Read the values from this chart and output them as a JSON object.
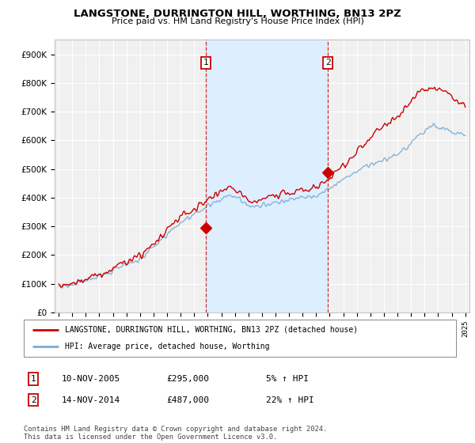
{
  "title": "LANGSTONE, DURRINGTON HILL, WORTHING, BN13 2PZ",
  "subtitle": "Price paid vs. HM Land Registry's House Price Index (HPI)",
  "ylim": [
    0,
    950000
  ],
  "yticks": [
    0,
    100000,
    200000,
    300000,
    400000,
    500000,
    600000,
    700000,
    800000,
    900000
  ],
  "ytick_labels": [
    "£0",
    "£100K",
    "£200K",
    "£300K",
    "£400K",
    "£500K",
    "£600K",
    "£700K",
    "£800K",
    "£900K"
  ],
  "xlim_left": 1994.7,
  "xlim_right": 2025.3,
  "purchase1_year": 2005.87,
  "purchase1_price": 295000,
  "purchase2_year": 2014.87,
  "purchase2_price": 487000,
  "red_color": "#cc0000",
  "blue_color": "#7aadd4",
  "shade_color": "#ddeeff",
  "background_color": "#ffffff",
  "plot_bg_color": "#f0f0f0",
  "grid_color": "#ffffff",
  "legend_label_red": "LANGSTONE, DURRINGTON HILL, WORTHING, BN13 2PZ (detached house)",
  "legend_label_blue": "HPI: Average price, detached house, Worthing",
  "footer": "Contains HM Land Registry data © Crown copyright and database right 2024.\nThis data is licensed under the Open Government Licence v3.0.",
  "purchase1_date": "10-NOV-2005",
  "purchase1_hpi_pct": "5%",
  "purchase2_date": "14-NOV-2014",
  "purchase2_hpi_pct": "22%"
}
